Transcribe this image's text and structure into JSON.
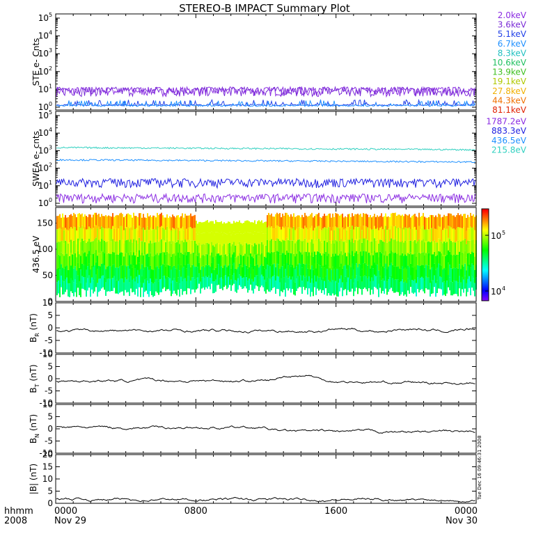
{
  "title": "STEREO-B IMPACT Summary Plot",
  "timestamp_vertical": "Tue Dec 16 09:46:31 2008",
  "chart_data": [
    {
      "id": "ste",
      "type": "line",
      "ylabel": "STE e- Cnts",
      "yscale": "log",
      "ylim": [
        1,
        100000
      ],
      "yticks": [
        "10",
        "10",
        "10",
        "10",
        "10",
        "10"
      ],
      "ytick_exp": [
        "0",
        "1",
        "2",
        "3",
        "4",
        "5"
      ],
      "series": [
        {
          "name": "2.0keV",
          "color": "#8a2be2",
          "level": 8
        },
        {
          "name": "3.6keV",
          "color": "#7a2bd6",
          "level": 8
        },
        {
          "name": "5.1keV",
          "color": "#2040e8",
          "level": 1.2
        },
        {
          "name": "6.7keV",
          "color": "#1e90ff",
          "level": 1.1
        },
        {
          "name": "8.3keV",
          "color": "#20c0c0"
        },
        {
          "name": "10.6keV",
          "color": "#20c060"
        },
        {
          "name": "13.9keV",
          "color": "#40c020"
        },
        {
          "name": "19.1keV",
          "color": "#b0c800"
        },
        {
          "name": "27.8keV",
          "color": "#f0b000"
        },
        {
          "name": "44.3keV",
          "color": "#f07000"
        },
        {
          "name": "81.1keV",
          "color": "#e02000"
        }
      ]
    },
    {
      "id": "swea",
      "type": "line",
      "ylabel": "SWEA e- cnts",
      "yscale": "log",
      "ylim": [
        1,
        100000
      ],
      "yticks": [
        "10",
        "10",
        "10",
        "10",
        "10",
        "10"
      ],
      "ytick_exp": [
        "0",
        "1",
        "2",
        "3",
        "4",
        "5"
      ],
      "series": [
        {
          "name": "1787.2eV",
          "color": "#8a2be2",
          "level": 2
        },
        {
          "name": "883.3eV",
          "color": "#2020e0",
          "level": 15
        },
        {
          "name": "436.5eV",
          "color": "#1e90ff",
          "level": 300
        },
        {
          "name": "215.8eV",
          "color": "#30d0c0",
          "level": 1500
        }
      ]
    },
    {
      "id": "pad",
      "type": "heatmap",
      "ylabel": "436.5 eV",
      "ylim": [
        0,
        180
      ],
      "yticks": [
        "0",
        "50",
        "100",
        "150"
      ],
      "colorbar_ticks": [
        "10",
        "10"
      ],
      "colorbar_exp": [
        "4",
        "5"
      ]
    },
    {
      "id": "br",
      "type": "line",
      "ylabel_main": "B",
      "ylabel_sub": "R",
      "ylabel_unit": " (nT)",
      "ylim": [
        -10,
        10
      ],
      "yticks": [
        "-10",
        "-5",
        "0",
        "5",
        "10"
      ]
    },
    {
      "id": "bt",
      "type": "line",
      "ylabel_main": "B",
      "ylabel_sub": "T",
      "ylabel_unit": " (nT)",
      "ylim": [
        -10,
        10
      ],
      "yticks": [
        "-10",
        "-5",
        "0",
        "5",
        "10"
      ]
    },
    {
      "id": "bn",
      "type": "line",
      "ylabel_main": "B",
      "ylabel_sub": "N",
      "ylabel_unit": " (nT)",
      "ylim": [
        -10,
        10
      ],
      "yticks": [
        "-10",
        "-5",
        "0",
        "5",
        "10"
      ]
    },
    {
      "id": "bmag",
      "type": "line",
      "ylabel_main": "|B|",
      "ylabel_sub": "",
      "ylabel_unit": " (nT)",
      "ylim": [
        0,
        20
      ],
      "yticks": [
        "0",
        "5",
        "10",
        "15",
        "20"
      ]
    }
  ],
  "xaxis": {
    "left_labels": [
      "hhmm",
      "2008"
    ],
    "ticks": [
      {
        "hhmm": "0000",
        "date": "Nov 29"
      },
      {
        "hhmm": "0800",
        "date": ""
      },
      {
        "hhmm": "1600",
        "date": ""
      },
      {
        "hhmm": "0000",
        "date": "Nov 30"
      }
    ]
  }
}
